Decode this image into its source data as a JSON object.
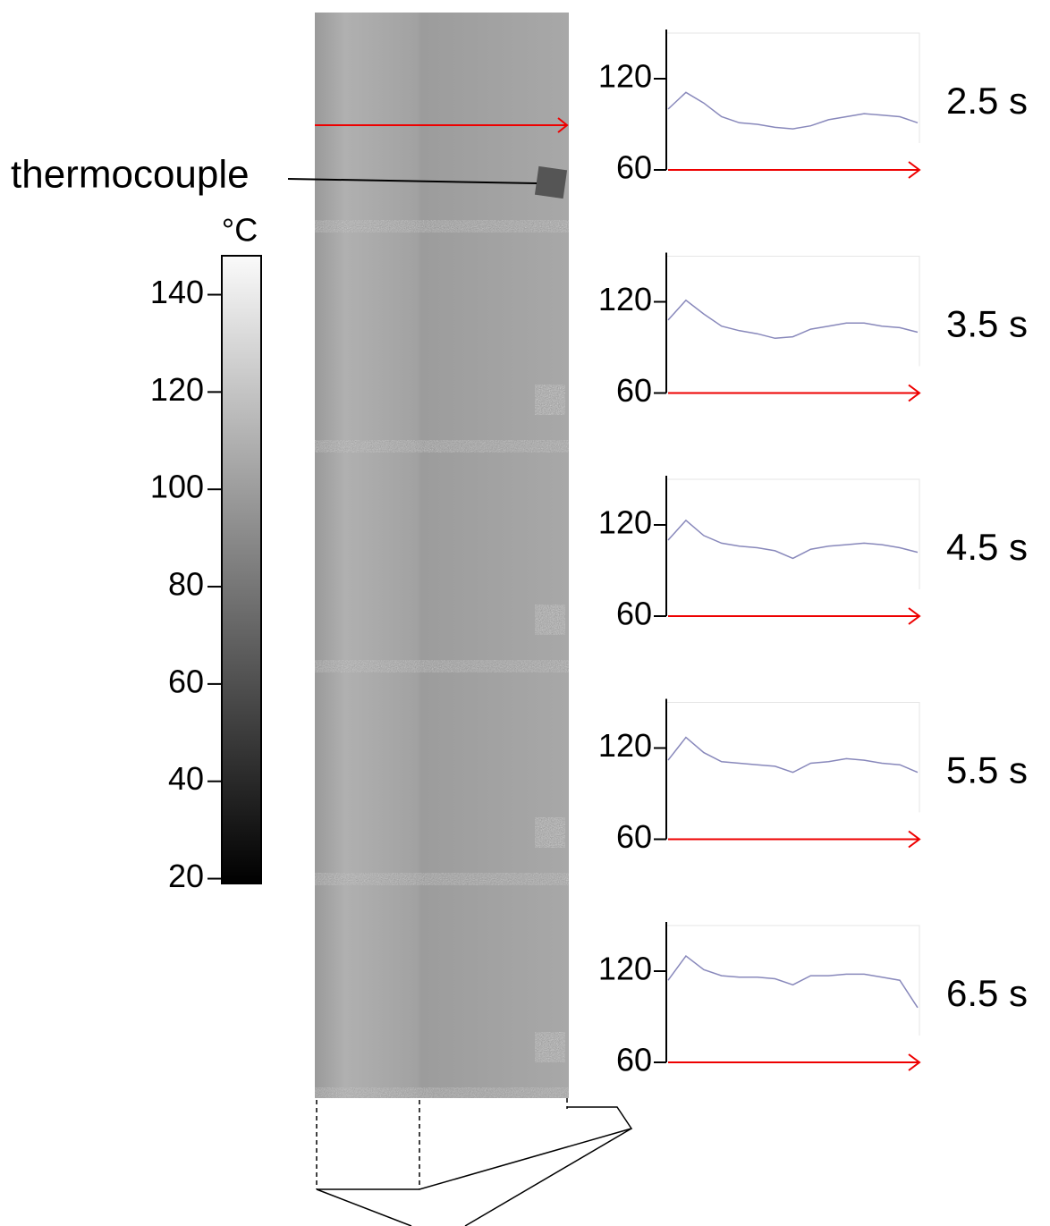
{
  "annotation": "thermocouple",
  "chart_data": [
    {
      "type": "colorbar",
      "unit": "°C",
      "ylim": [
        19,
        148
      ],
      "yticks": [
        20,
        40,
        60,
        80,
        100,
        120,
        140
      ]
    },
    {
      "type": "line",
      "title": "2.5 s",
      "color": "#8888bb",
      "ylim": [
        60,
        150
      ],
      "yticks": [
        60,
        120
      ],
      "values": [
        100,
        111,
        104,
        95,
        91,
        90,
        88,
        87,
        89,
        93,
        95,
        97,
        96,
        95,
        91
      ]
    },
    {
      "type": "line",
      "title": "3.5 s",
      "color": "#8888bb",
      "ylim": [
        60,
        150
      ],
      "yticks": [
        60,
        120
      ],
      "values": [
        108,
        121,
        112,
        104,
        101,
        99,
        96,
        97,
        102,
        104,
        106,
        106,
        104,
        103,
        100
      ]
    },
    {
      "type": "line",
      "title": "4.5 s",
      "color": "#8888bb",
      "ylim": [
        60,
        150
      ],
      "yticks": [
        60,
        120
      ],
      "values": [
        110,
        123,
        113,
        108,
        106,
        105,
        103,
        98,
        104,
        106,
        107,
        108,
        107,
        105,
        102
      ]
    },
    {
      "type": "line",
      "title": "5.5 s",
      "color": "#8888bb",
      "ylim": [
        60,
        150
      ],
      "yticks": [
        60,
        120
      ],
      "values": [
        112,
        127,
        117,
        111,
        110,
        109,
        108,
        104,
        110,
        111,
        113,
        112,
        110,
        109,
        104
      ]
    },
    {
      "type": "line",
      "title": "6.5 s",
      "color": "#8888bb",
      "ylim": [
        60,
        150
      ],
      "yticks": [
        60,
        120
      ],
      "values": [
        114,
        130,
        121,
        117,
        116,
        116,
        115,
        111,
        117,
        117,
        118,
        118,
        116,
        114,
        96
      ]
    }
  ]
}
